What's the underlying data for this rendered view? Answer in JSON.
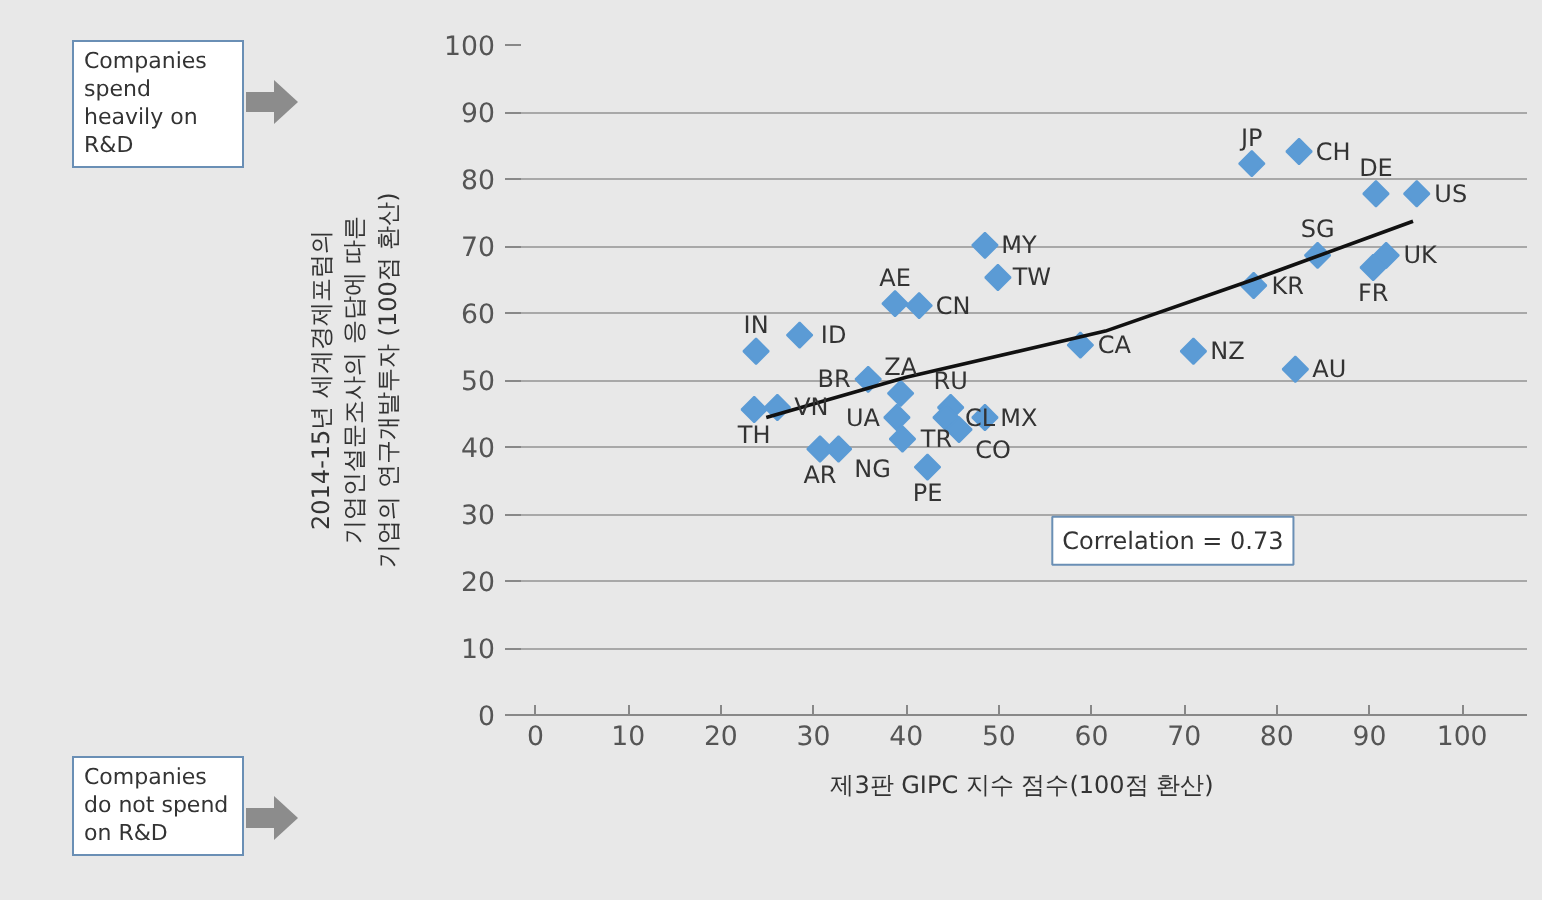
{
  "chart_data": {
    "type": "scatter",
    "xlabel": "제3판 GIPC 지수 점수(100점 환산)",
    "ylabel": "2014-15년 세계경제포럼의\n기업인설문조사의 응답에 따른\n기업의 연구개발투자 (100점 환산)",
    "xlim": [
      -2,
      107
    ],
    "ylim": [
      0,
      100
    ],
    "xticks": [
      0,
      10,
      20,
      30,
      40,
      50,
      60,
      70,
      80,
      90,
      100
    ],
    "yticks": [
      0,
      10,
      20,
      30,
      40,
      50,
      60,
      70,
      80,
      90,
      100
    ],
    "grid": "y",
    "marker": "diamond",
    "series": [
      {
        "color": "#5b9bd5",
        "x": [
          23.8,
          28.5,
          23.6,
          26.1,
          30.7,
          32.7,
          38.8,
          41.4,
          48.5,
          49.9,
          35.9,
          39.4,
          39.0,
          39.6,
          44.8,
          44.3,
          45.7,
          48.5,
          42.3,
          58.8,
          77.3,
          82.4,
          90.7,
          95.1,
          84.4,
          91.8,
          90.4,
          77.5,
          71.0,
          82.0
        ],
        "values": [
          54.3,
          56.7,
          45.6,
          45.9,
          39.7,
          39.7,
          61.4,
          61.1,
          70.1,
          65.3,
          50.1,
          48.0,
          44.4,
          41.2,
          45.9,
          44.4,
          42.6,
          44.4,
          37.0,
          55.2,
          82.3,
          84.1,
          77.8,
          77.8,
          68.6,
          68.6,
          66.8,
          64.1,
          54.3,
          51.6
        ]
      },
      {
        "type": "line",
        "marker": "none",
        "color": "#111111",
        "x": [
          24.9,
          40.0,
          61.5,
          77.5,
          94.7
        ],
        "values": [
          44.4,
          50.4,
          57.3,
          65.0,
          73.7
        ]
      }
    ],
    "annotations": [
      "Companies\nspend\nheavily on\nR&D",
      "Companies\ndo not spend\non R&D",
      "Correlation = 0.73",
      {
        "text": "IN",
        "x": 23.8,
        "y": 54.3
      },
      {
        "text": "ID",
        "x": 28.5,
        "y": 56.7
      },
      {
        "text": "TH",
        "x": 23.6,
        "y": 45.6
      },
      {
        "text": "VN",
        "x": 26.1,
        "y": 45.9
      },
      {
        "text": "AR",
        "x": 30.7,
        "y": 39.7
      },
      {
        "text": "NG",
        "x": 32.7,
        "y": 39.7
      },
      {
        "text": "AE",
        "x": 38.8,
        "y": 61.4
      },
      {
        "text": "CN",
        "x": 41.4,
        "y": 61.1
      },
      {
        "text": "MY",
        "x": 48.5,
        "y": 70.1
      },
      {
        "text": "TW",
        "x": 49.9,
        "y": 65.3
      },
      {
        "text": "BR",
        "x": 35.9,
        "y": 50.1
      },
      {
        "text": "ZA",
        "x": 39.4,
        "y": 48.0
      },
      {
        "text": "UA",
        "x": 39.0,
        "y": 44.4
      },
      {
        "text": "TR",
        "x": 39.6,
        "y": 41.2
      },
      {
        "text": "RU",
        "x": 44.8,
        "y": 45.9
      },
      {
        "text": "CL",
        "x": 44.3,
        "y": 44.4
      },
      {
        "text": "CO",
        "x": 45.7,
        "y": 42.6
      },
      {
        "text": "MX",
        "x": 48.5,
        "y": 44.4
      },
      {
        "text": "PE",
        "x": 42.3,
        "y": 37.0
      },
      {
        "text": "CA",
        "x": 58.8,
        "y": 55.2
      },
      {
        "text": "JP",
        "x": 77.3,
        "y": 82.3
      },
      {
        "text": "CH",
        "x": 82.4,
        "y": 84.1
      },
      {
        "text": "DE",
        "x": 90.7,
        "y": 77.8
      },
      {
        "text": "US",
        "x": 95.1,
        "y": 77.8
      },
      {
        "text": "SG",
        "x": 84.4,
        "y": 68.6
      },
      {
        "text": "UK",
        "x": 91.8,
        "y": 68.6
      },
      {
        "text": "FR",
        "x": 90.4,
        "y": 66.8
      },
      {
        "text": "KR",
        "x": 77.5,
        "y": 64.1
      },
      {
        "text": "NZ",
        "x": 71.0,
        "y": 54.3
      },
      {
        "text": "AU",
        "x": 82.0,
        "y": 51.6
      }
    ]
  }
}
